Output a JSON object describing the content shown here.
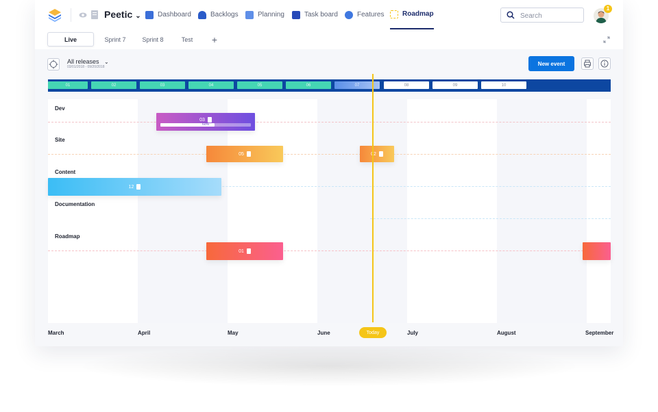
{
  "topbar": {
    "project_name": "Peetic",
    "nav": [
      {
        "label": "Dashboard",
        "icon": "dashboard-icon"
      },
      {
        "label": "Backlogs",
        "icon": "backlogs-icon"
      },
      {
        "label": "Planning",
        "icon": "planning-icon"
      },
      {
        "label": "Task board",
        "icon": "taskboard-icon"
      },
      {
        "label": "Features",
        "icon": "features-icon"
      },
      {
        "label": "Roadmap",
        "icon": "roadmap-icon",
        "active": true
      }
    ],
    "search_placeholder": "Search",
    "notification_count": "1"
  },
  "tabs": {
    "items": [
      "Live",
      "Sprint 7",
      "Sprint 8",
      "Test"
    ],
    "active": "Live",
    "add": "+"
  },
  "toolbar": {
    "releases_label": "All releases",
    "releases_range": "03/01/2018 - 09/20/2018",
    "new_event": "New event"
  },
  "sprints": [
    "01",
    "02",
    "03",
    "04",
    "05",
    "06",
    "07",
    "08",
    "09",
    "10"
  ],
  "rows": [
    "Dev",
    "Site",
    "Content",
    "Documentation",
    "Roadmap"
  ],
  "events": {
    "dev": {
      "label": "03",
      "progress_text": "60%",
      "progress": 0.6
    },
    "site_a": {
      "label": "05"
    },
    "site_b": {
      "label": "02"
    },
    "content": {
      "label": "12"
    },
    "roadmap": {
      "label": "01"
    }
  },
  "months": [
    "March",
    "April",
    "May",
    "June",
    "July",
    "August",
    "September"
  ],
  "today_label": "Today",
  "colors": {
    "accent": "#0b74e0",
    "sprint_strip": "#0d47a1",
    "today": "#f5c518"
  }
}
